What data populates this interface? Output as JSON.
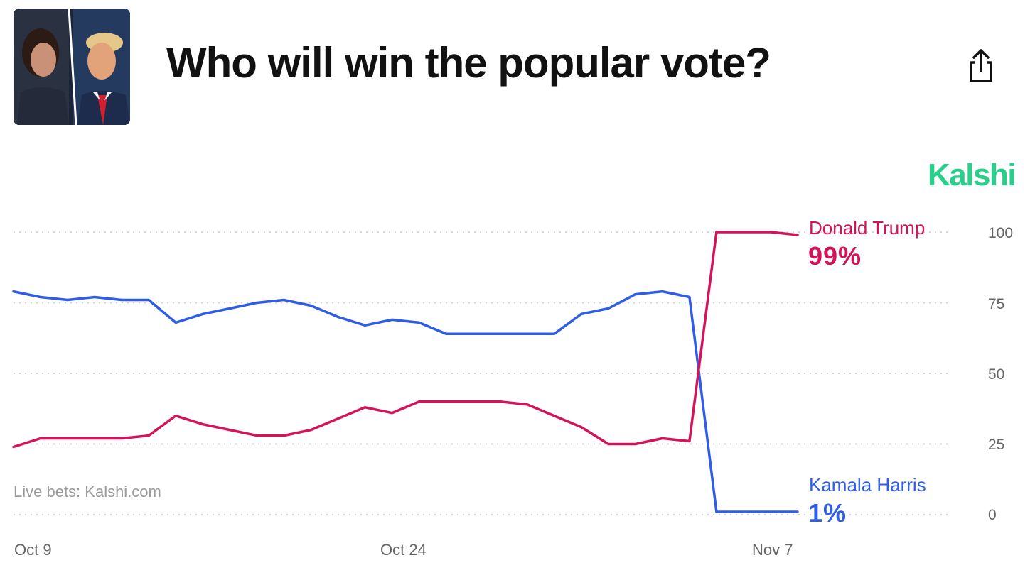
{
  "header": {
    "title": "Who will win the popular vote?",
    "thumbnail_icon": "candidates-photo-icon",
    "share_icon": "share-icon"
  },
  "brand": {
    "name": "Kalshi",
    "color": "#28d08b"
  },
  "attribution": "Live bets: Kalshi.com",
  "labels": {
    "trump": {
      "name": "Donald Trump",
      "value": "99%",
      "color": "#d4145a"
    },
    "harris": {
      "name": "Kamala Harris",
      "value": "1%",
      "color": "#2f5de6"
    }
  },
  "chart_data": {
    "type": "line",
    "title": "Who will win the popular vote?",
    "xlabel": "",
    "ylabel": "",
    "ylim": [
      0,
      100
    ],
    "yticks": [
      "0",
      "25",
      "50",
      "75",
      "100"
    ],
    "xticks": [
      "Oct 9",
      "Oct 24",
      "Nov 7"
    ],
    "grid": true,
    "legend": "right",
    "x": [
      "Oct 9",
      "Oct 10",
      "Oct 11",
      "Oct 12",
      "Oct 13",
      "Oct 14",
      "Oct 15",
      "Oct 16",
      "Oct 17",
      "Oct 18",
      "Oct 19",
      "Oct 20",
      "Oct 21",
      "Oct 22",
      "Oct 23",
      "Oct 24",
      "Oct 25",
      "Oct 26",
      "Oct 27",
      "Oct 28",
      "Oct 29",
      "Oct 30",
      "Oct 31",
      "Nov 1",
      "Nov 2",
      "Nov 3",
      "Nov 4",
      "Nov 5",
      "Nov 6",
      "Nov 7"
    ],
    "series": [
      {
        "name": "Kamala Harris",
        "color": "#2f5de6",
        "values": [
          79,
          77,
          76,
          77,
          76,
          76,
          68,
          71,
          73,
          75,
          76,
          74,
          70,
          67,
          69,
          68,
          64,
          64,
          64,
          64,
          64,
          71,
          73,
          78,
          79,
          77,
          1,
          1,
          1,
          1
        ]
      },
      {
        "name": "Donald Trump",
        "color": "#d4145a",
        "values": [
          24,
          27,
          27,
          27,
          27,
          28,
          35,
          32,
          30,
          28,
          28,
          30,
          34,
          38,
          36,
          40,
          40,
          40,
          40,
          39,
          35,
          31,
          25,
          25,
          27,
          26,
          100,
          100,
          100,
          99
        ]
      }
    ]
  }
}
